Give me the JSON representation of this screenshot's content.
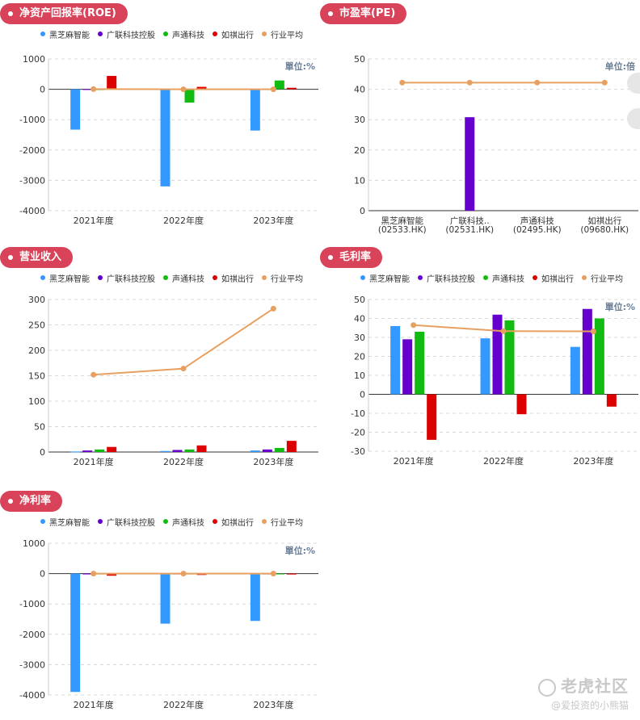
{
  "colors": {
    "tag_bg": "#d9435a",
    "heizhima": "#3399ff",
    "guanglian": "#6600cc",
    "shengtong": "#11bb11",
    "ruqi": "#dd0000",
    "avg": "#e8a060"
  },
  "watermark": {
    "brand": "老虎社区",
    "user": "@爱投资的小熊猫"
  },
  "chart_data": [
    {
      "id": "roe",
      "type": "bar",
      "title": "净资产回报率(ROE)",
      "unit_label": "單位:%",
      "legend": [
        "黑芝麻智能",
        "广联科技控股",
        "声通科技",
        "如祺出行",
        "行业平均"
      ],
      "categories": [
        "2021年度",
        "2022年度",
        "2023年度"
      ],
      "ylim": [
        -4000,
        1000
      ],
      "yticks": [
        1000,
        0,
        -1000,
        -2000,
        -3000,
        -4000
      ],
      "series": [
        {
          "name": "黑芝麻智能",
          "color": "#3399ff",
          "values": [
            -1330,
            -3200,
            -1360
          ]
        },
        {
          "name": "广联科技控股",
          "color": "#6600cc",
          "values": [
            5,
            5,
            5
          ]
        },
        {
          "name": "声通科技",
          "color": "#11bb11",
          "values": [
            -10,
            -440,
            290
          ]
        },
        {
          "name": "如祺出行",
          "color": "#dd0000",
          "values": [
            440,
            80,
            50
          ]
        }
      ],
      "line": {
        "name": "行业平均",
        "color": "#e8a060",
        "values": [
          5,
          0,
          0
        ]
      }
    },
    {
      "id": "pe",
      "type": "bar",
      "title": "市盈率(PE)",
      "unit_label": "单位:倍",
      "categories": [
        "黑芝麻智能\n(02533.HK)",
        "广联科技..\n(02531.HK)",
        "声通科技\n(02495.HK)",
        "如祺出行\n(09680.HK)"
      ],
      "ylim": [
        0,
        50
      ],
      "yticks": [
        50,
        40,
        30,
        20,
        10,
        0
      ],
      "values": [
        0,
        30.8,
        0,
        0
      ],
      "bar_color": "#6600cc",
      "line": {
        "name": "行业平均",
        "color": "#e8a060",
        "values": [
          42.2,
          42.2,
          42.2,
          42.2
        ]
      }
    },
    {
      "id": "revenue",
      "type": "bar",
      "title": "营业收入",
      "legend": [
        "黑芝麻智能",
        "广联科技控股",
        "声通科技",
        "如祺出行",
        "行业平均"
      ],
      "categories": [
        "2021年度",
        "2022年度",
        "2023年度"
      ],
      "ylim": [
        0,
        300
      ],
      "yticks": [
        300,
        250,
        200,
        150,
        100,
        50,
        0
      ],
      "series": [
        {
          "name": "黑芝麻智能",
          "color": "#3399ff",
          "values": [
            1,
            2,
            3
          ]
        },
        {
          "name": "广联科技控股",
          "color": "#6600cc",
          "values": [
            3,
            4,
            5
          ]
        },
        {
          "name": "声通科技",
          "color": "#11bb11",
          "values": [
            5,
            5,
            8
          ]
        },
        {
          "name": "如祺出行",
          "color": "#dd0000",
          "values": [
            10,
            13,
            22
          ]
        }
      ],
      "line": {
        "name": "行业平均",
        "color": "#e8a060",
        "values": [
          152,
          164,
          282
        ]
      }
    },
    {
      "id": "gross_margin",
      "type": "bar",
      "title": "毛利率",
      "unit_label": "單位:%",
      "legend": [
        "黑芝麻智能",
        "广联科技控股",
        "声通科技",
        "如祺出行",
        "行业平均"
      ],
      "categories": [
        "2021年度",
        "2022年度",
        "2023年度"
      ],
      "ylim": [
        -30,
        50
      ],
      "yticks": [
        50,
        40,
        30,
        20,
        10,
        0,
        -10,
        -20,
        -30
      ],
      "series": [
        {
          "name": "黑芝麻智能",
          "color": "#3399ff",
          "values": [
            36,
            29.5,
            25
          ]
        },
        {
          "name": "广联科技控股",
          "color": "#6600cc",
          "values": [
            29,
            42,
            45
          ]
        },
        {
          "name": "声通科技",
          "color": "#11bb11",
          "values": [
            33,
            39,
            40
          ]
        },
        {
          "name": "如祺出行",
          "color": "#dd0000",
          "values": [
            -24,
            -10.5,
            -6.5
          ]
        }
      ],
      "line": {
        "name": "行业平均",
        "color": "#e8a060",
        "values": [
          36.5,
          33.3,
          33.2
        ]
      }
    },
    {
      "id": "net_margin",
      "type": "bar",
      "title": "净利率",
      "unit_label": "單位:%",
      "legend": [
        "黑芝麻智能",
        "广联科技控股",
        "声通科技",
        "如祺出行",
        "行业平均"
      ],
      "categories": [
        "2021年度",
        "2022年度",
        "2023年度"
      ],
      "ylim": [
        -4000,
        1000
      ],
      "yticks": [
        1000,
        0,
        -1000,
        -2000,
        -3000,
        -4000
      ],
      "series": [
        {
          "name": "黑芝麻智能",
          "color": "#3399ff",
          "values": [
            -3900,
            -1650,
            -1560
          ]
        },
        {
          "name": "广联科技控股",
          "color": "#6600cc",
          "values": [
            -10,
            -10,
            -5
          ]
        },
        {
          "name": "声通科技",
          "color": "#11bb11",
          "values": [
            -15,
            -10,
            -5
          ]
        },
        {
          "name": "如祺出行",
          "color": "#dd0000",
          "values": [
            -70,
            -45,
            -30
          ]
        }
      ],
      "line": {
        "name": "行业平均",
        "color": "#e8a060",
        "values": [
          0,
          0,
          0
        ]
      }
    }
  ]
}
